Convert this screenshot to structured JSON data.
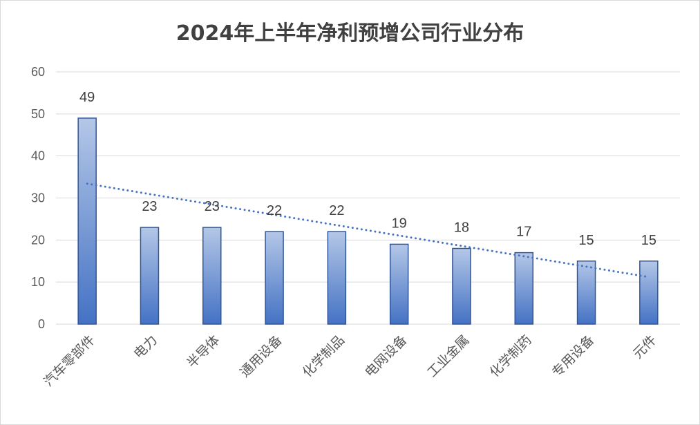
{
  "chart_data": {
    "type": "bar",
    "title": "2024年上半年净利预增公司行业分布",
    "categories": [
      "汽车零部件",
      "电力",
      "半导体",
      "通用设备",
      "化学制品",
      "电网设备",
      "工业金属",
      "化学制药",
      "专用设备",
      "元件"
    ],
    "values": [
      49,
      23,
      23,
      22,
      22,
      19,
      18,
      17,
      15,
      15
    ],
    "ylim": [
      0,
      60
    ],
    "yticks": [
      "0",
      "10",
      "20",
      "30",
      "40",
      "50",
      "60"
    ],
    "grid": true,
    "trendline": "linear (dotted)",
    "colors": {
      "bar_top": "#b4c7e7",
      "bar_bottom": "#4472c4",
      "bar_border": "#2f5597",
      "trend": "#4472c4",
      "grid": "#d9d9d9"
    }
  }
}
